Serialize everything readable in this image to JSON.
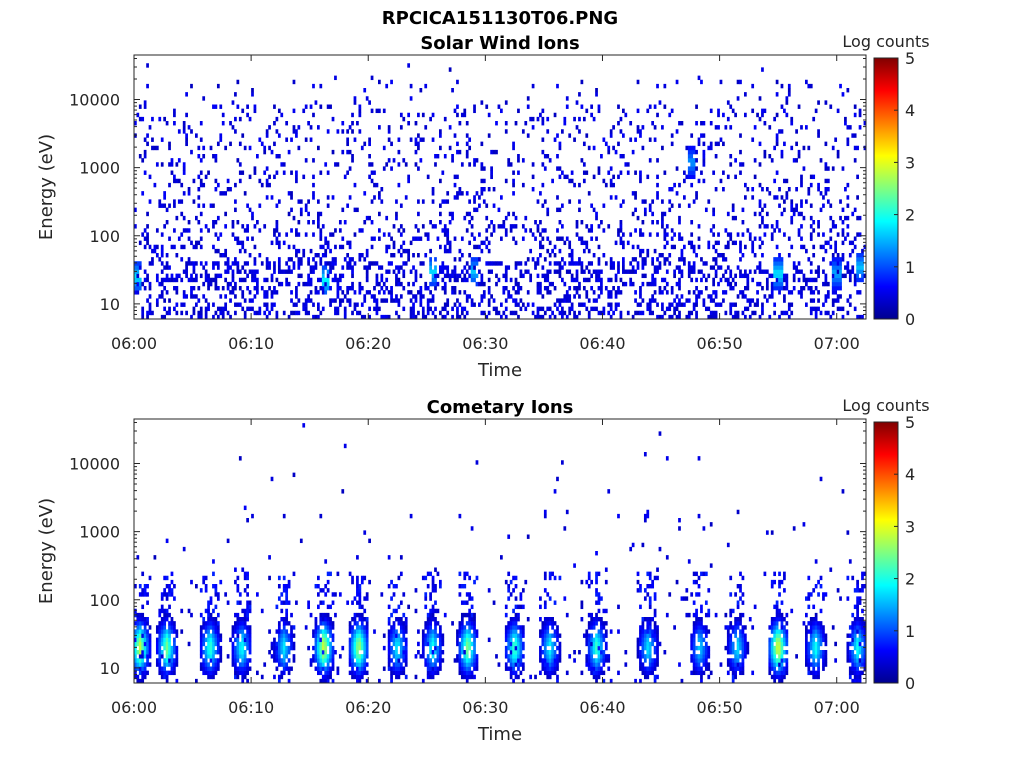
{
  "figure_title": "RPCICA151130T06.PNG",
  "chart_data": [
    {
      "type": "heatmap",
      "title": "Solar Wind Ions",
      "xlabel": "Time",
      "ylabel": "Energy (eV)",
      "x_ticks": [
        "06:00",
        "06:10",
        "06:20",
        "06:30",
        "06:40",
        "06:50",
        "07:00"
      ],
      "x_range_minutes": [
        0,
        62.5
      ],
      "y_scale": "log",
      "y_ticks": [
        10,
        100,
        1000,
        10000
      ],
      "y_tick_labels": [
        "10",
        "100",
        "1000",
        "10000"
      ],
      "y_range_eV": [
        6,
        45000
      ],
      "colorbar": {
        "label": "Log counts",
        "range": [
          0,
          5
        ],
        "ticks": [
          "0",
          "1",
          "2",
          "3",
          "4",
          "5"
        ],
        "colormap": "jet"
      },
      "hotspots": [
        {
          "t_min": 0.3,
          "energy_eV": 25,
          "log_counts": 1.8
        },
        {
          "t_min": 16.3,
          "energy_eV": 22,
          "log_counts": 1.9
        },
        {
          "t_min": 25.5,
          "energy_eV": 30,
          "log_counts": 1.7
        },
        {
          "t_min": 29.0,
          "energy_eV": 30,
          "log_counts": 1.6
        },
        {
          "t_min": 47.6,
          "energy_eV": 1200,
          "log_counts": 1.4
        },
        {
          "t_min": 55.0,
          "energy_eV": 28,
          "log_counts": 1.8
        },
        {
          "t_min": 60.0,
          "energy_eV": 28,
          "log_counts": 1.5
        },
        {
          "t_min": 62.0,
          "energy_eV": 35,
          "log_counts": 1.6
        }
      ]
    },
    {
      "type": "heatmap",
      "title": "Cometary Ions",
      "xlabel": "Time",
      "ylabel": "Energy (eV)",
      "x_ticks": [
        "06:00",
        "06:10",
        "06:20",
        "06:30",
        "06:40",
        "06:50",
        "07:00"
      ],
      "x_range_minutes": [
        0,
        62.5
      ],
      "y_scale": "log",
      "y_ticks": [
        10,
        100,
        1000,
        10000
      ],
      "y_tick_labels": [
        "10",
        "100",
        "1000",
        "10000"
      ],
      "y_range_eV": [
        6,
        45000
      ],
      "colorbar": {
        "label": "Log counts",
        "range": [
          0,
          5
        ],
        "ticks": [
          "0",
          "1",
          "2",
          "3",
          "4",
          "5"
        ],
        "colormap": "jet"
      },
      "bursts": [
        {
          "t_min": 0.5,
          "peak_log_counts": 2.9
        },
        {
          "t_min": 2.8,
          "peak_log_counts": 2.5
        },
        {
          "t_min": 6.5,
          "peak_log_counts": 2.2
        },
        {
          "t_min": 9.2,
          "peak_log_counts": 2.0
        },
        {
          "t_min": 12.8,
          "peak_log_counts": 1.8
        },
        {
          "t_min": 16.2,
          "peak_log_counts": 3.0
        },
        {
          "t_min": 19.2,
          "peak_log_counts": 2.8
        },
        {
          "t_min": 22.5,
          "peak_log_counts": 1.9
        },
        {
          "t_min": 25.5,
          "peak_log_counts": 2.0
        },
        {
          "t_min": 28.5,
          "peak_log_counts": 2.6
        },
        {
          "t_min": 32.5,
          "peak_log_counts": 2.3
        },
        {
          "t_min": 35.5,
          "peak_log_counts": 1.9
        },
        {
          "t_min": 39.5,
          "peak_log_counts": 2.2
        },
        {
          "t_min": 43.9,
          "peak_log_counts": 1.8
        },
        {
          "t_min": 48.3,
          "peak_log_counts": 1.7
        },
        {
          "t_min": 51.5,
          "peak_log_counts": 1.8
        },
        {
          "t_min": 55.0,
          "peak_log_counts": 3.1
        },
        {
          "t_min": 58.2,
          "peak_log_counts": 2.0
        },
        {
          "t_min": 61.8,
          "peak_log_counts": 2.0
        }
      ]
    }
  ]
}
